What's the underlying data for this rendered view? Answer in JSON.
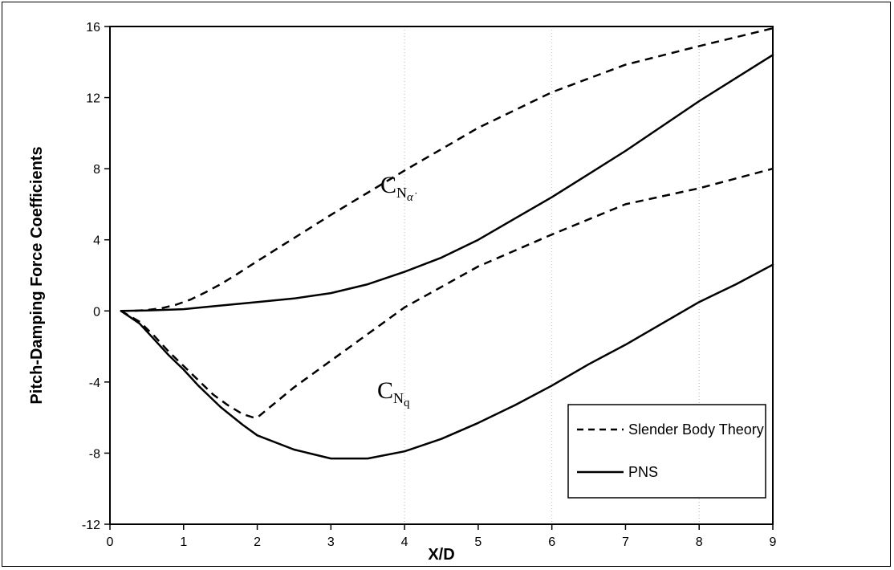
{
  "chart_data": {
    "type": "line",
    "title": "",
    "xlabel": "X/D",
    "ylabel": "Pitch-Damping Force Coefficients",
    "xlim": [
      0,
      9
    ],
    "ylim": [
      -12,
      16
    ],
    "xticks": [
      0,
      1,
      2,
      3,
      4,
      5,
      6,
      7,
      8,
      9
    ],
    "yticks": [
      -12,
      -8,
      -4,
      0,
      4,
      8,
      12,
      16
    ],
    "grid": "vertical dotted at x = 4, 6, 8",
    "legend_position": "bottom-right",
    "legend": [
      {
        "label": "Slender Body Theory",
        "style": "dashed"
      },
      {
        "label": "PNS",
        "style": "solid"
      }
    ],
    "annotations": [
      {
        "base": "C",
        "sub": "N",
        "subsub": "α̇"
      },
      {
        "base": "C",
        "sub": "N",
        "subsub": "q"
      }
    ],
    "series": [
      {
        "legend_index": 0,
        "style": "dashed",
        "points": [
          [
            0.15,
            0
          ],
          [
            0.3,
            0
          ],
          [
            0.5,
            0.05
          ],
          [
            0.7,
            0.15
          ],
          [
            0.9,
            0.35
          ],
          [
            1.1,
            0.65
          ],
          [
            1.3,
            1.05
          ],
          [
            1.5,
            1.5
          ],
          [
            1.7,
            2.0
          ],
          [
            2.0,
            2.8
          ],
          [
            2.5,
            4.1
          ],
          [
            3.0,
            5.4
          ],
          [
            3.5,
            6.65
          ],
          [
            4.0,
            7.9
          ],
          [
            5.0,
            10.3
          ],
          [
            6.0,
            12.3
          ],
          [
            7.0,
            13.85
          ],
          [
            8.0,
            14.9
          ],
          [
            9.0,
            15.9
          ]
        ]
      },
      {
        "legend_index": 1,
        "style": "solid",
        "points": [
          [
            0.15,
            0
          ],
          [
            0.5,
            0.02
          ],
          [
            1.0,
            0.1
          ],
          [
            1.5,
            0.3
          ],
          [
            2.0,
            0.5
          ],
          [
            2.5,
            0.7
          ],
          [
            3.0,
            1.0
          ],
          [
            3.5,
            1.5
          ],
          [
            4.0,
            2.2
          ],
          [
            4.5,
            3.0
          ],
          [
            5.0,
            4.0
          ],
          [
            5.5,
            5.2
          ],
          [
            6.0,
            6.4
          ],
          [
            6.5,
            7.7
          ],
          [
            7.0,
            9.0
          ],
          [
            7.5,
            10.4
          ],
          [
            8.0,
            11.8
          ],
          [
            8.5,
            13.1
          ],
          [
            9.0,
            14.4
          ]
        ]
      },
      {
        "legend_index": 0,
        "style": "dashed",
        "points": [
          [
            0.15,
            0
          ],
          [
            0.4,
            -0.6
          ],
          [
            0.6,
            -1.4
          ],
          [
            0.8,
            -2.3
          ],
          [
            1.0,
            -3.1
          ],
          [
            1.2,
            -3.9
          ],
          [
            1.4,
            -4.7
          ],
          [
            1.6,
            -5.3
          ],
          [
            1.8,
            -5.8
          ],
          [
            1.95,
            -6.0
          ],
          [
            2.0,
            -6.0
          ],
          [
            2.5,
            -4.3
          ],
          [
            3.0,
            -2.8
          ],
          [
            4.0,
            0.2
          ],
          [
            5.0,
            2.5
          ],
          [
            6.0,
            4.3
          ],
          [
            7.0,
            6.0
          ],
          [
            8.0,
            6.9
          ],
          [
            9.0,
            8.0
          ]
        ]
      },
      {
        "legend_index": 1,
        "style": "solid",
        "points": [
          [
            0.15,
            0
          ],
          [
            0.4,
            -0.7
          ],
          [
            0.6,
            -1.6
          ],
          [
            0.8,
            -2.5
          ],
          [
            1.0,
            -3.3
          ],
          [
            1.2,
            -4.2
          ],
          [
            1.5,
            -5.4
          ],
          [
            1.8,
            -6.4
          ],
          [
            2.0,
            -7.0
          ],
          [
            2.5,
            -7.8
          ],
          [
            3.0,
            -8.3
          ],
          [
            3.5,
            -8.3
          ],
          [
            4.0,
            -7.9
          ],
          [
            4.5,
            -7.2
          ],
          [
            5.0,
            -6.3
          ],
          [
            5.5,
            -5.3
          ],
          [
            6.0,
            -4.2
          ],
          [
            6.5,
            -3.0
          ],
          [
            7.0,
            -1.9
          ],
          [
            7.5,
            -0.7
          ],
          [
            8.0,
            0.5
          ],
          [
            8.5,
            1.5
          ],
          [
            9.0,
            2.6
          ]
        ]
      }
    ]
  }
}
